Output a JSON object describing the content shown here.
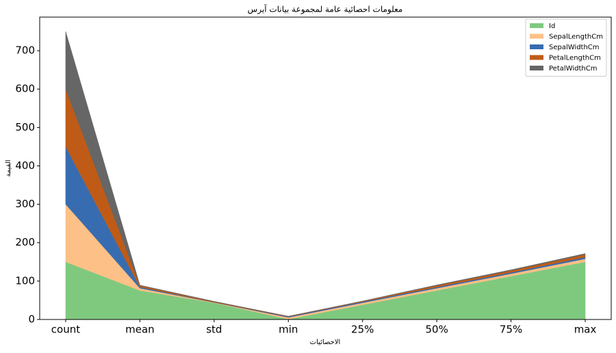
{
  "chart_data": {
    "type": "stacked_area",
    "title": "معلومات احصائية عامة لمجموعة بيانات آيرس",
    "x_label": "الاحصائيات",
    "y_label": "القيمة",
    "categories": [
      "count",
      "mean",
      "std",
      "min",
      "25%",
      "50%",
      "75%",
      "max"
    ],
    "series": [
      {
        "name": "Id",
        "color": "#7fc97f",
        "values": [
          150,
          75.5,
          43.445,
          1,
          38.25,
          75.5,
          112.75,
          150
        ]
      },
      {
        "name": "SepalLengthCm",
        "color": "#fdc086",
        "values": [
          150,
          5.843,
          0.828,
          4.3,
          5.1,
          5.8,
          6.4,
          7.9
        ]
      },
      {
        "name": "SepalWidthCm",
        "color": "#386cb0",
        "values": [
          150,
          3.054,
          0.434,
          2.0,
          2.8,
          3.0,
          3.3,
          4.4
        ]
      },
      {
        "name": "PetalLengthCm",
        "color": "#bf5b17",
        "values": [
          150,
          3.759,
          1.764,
          1.0,
          1.6,
          4.35,
          5.1,
          6.9
        ]
      },
      {
        "name": "PetalWidthCm",
        "color": "#666666",
        "values": [
          150,
          1.199,
          0.763,
          0.1,
          0.3,
          1.3,
          1.8,
          2.5
        ]
      }
    ],
    "ylim": [
      0,
      787.5
    ],
    "yticks": [
      0,
      100,
      200,
      300,
      400,
      500,
      600,
      700
    ],
    "legend": "upper right"
  }
}
